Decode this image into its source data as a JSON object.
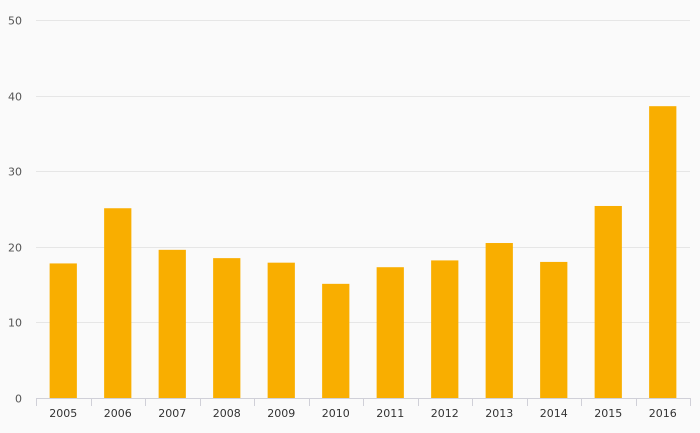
{
  "chart_data": {
    "type": "bar",
    "title": "",
    "xlabel": "",
    "ylabel": "",
    "categories": [
      "2005",
      "2006",
      "2007",
      "2008",
      "2009",
      "2010",
      "2011",
      "2012",
      "2013",
      "2014",
      "2015",
      "2016"
    ],
    "values": [
      17.8,
      25.1,
      19.6,
      18.5,
      17.9,
      15.1,
      17.3,
      18.2,
      20.5,
      18.0,
      25.4,
      38.6
    ],
    "ylim": [
      0,
      50
    ],
    "yticks": [
      0,
      10,
      20,
      30,
      40,
      50
    ],
    "grid": true,
    "legend": "none",
    "bar_color": "#f9ae00"
  }
}
